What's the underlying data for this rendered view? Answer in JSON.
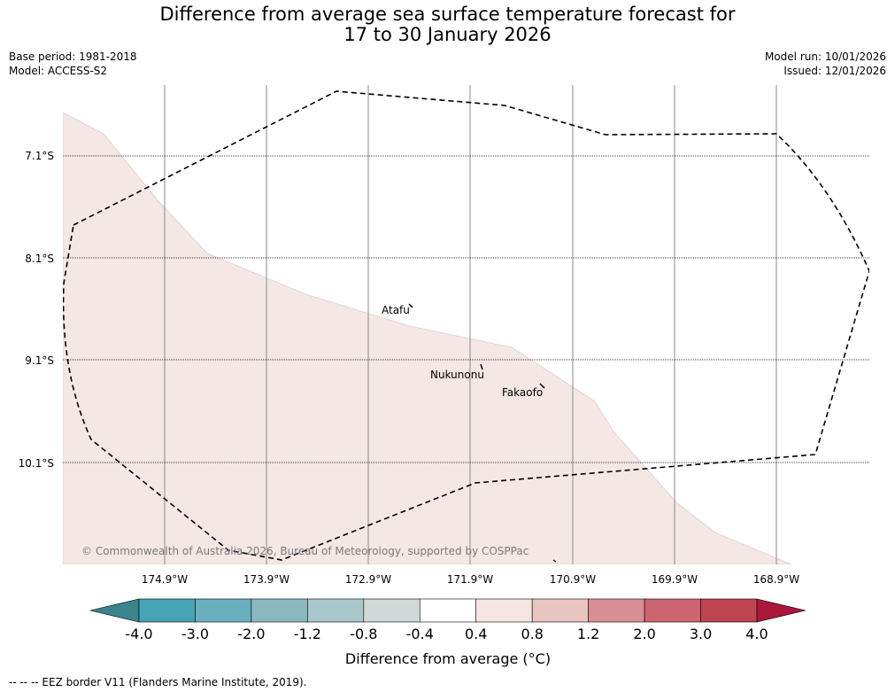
{
  "title": {
    "line1": "Difference from average sea surface temperature forecast for",
    "line2": "17 to 30 January 2026"
  },
  "meta": {
    "base_period": "Base period: 1981-2018",
    "model": "Model: ACCESS-S2",
    "model_run": "Model run: 10/01/2026",
    "issued": "Issued: 12/01/2026"
  },
  "map": {
    "latitudes": [
      "7.1°S",
      "8.1°S",
      "9.1°S",
      "10.1°S"
    ],
    "longitudes": [
      "174.9°W",
      "173.9°W",
      "172.9°W",
      "171.9°W",
      "170.9°W",
      "169.9°W",
      "168.9°W"
    ],
    "places": [
      {
        "name": "Atafu"
      },
      {
        "name": "Nukunonu"
      },
      {
        "name": "Fakaofo"
      }
    ],
    "copyright": "© Commonwealth of Australia 2026, Bureau of Meteorology, supported by COSPPac",
    "anomaly_fill_color": "#f4e7e6",
    "anomaly_fill_category": "0.4 to 0.8"
  },
  "colorbar": {
    "title": "Difference from average (°C)",
    "tick_labels": [
      "-4.0",
      "-3.0",
      "-2.0",
      "-1.2",
      "-0.8",
      "-0.4",
      "0.4",
      "0.8",
      "1.2",
      "2.0",
      "3.0",
      "4.0"
    ],
    "colors": [
      "#3b838d",
      "#46a4b4",
      "#6aafbd",
      "#8cb8c1",
      "#a9c8cb",
      "#d1d9d8",
      "#ffffff",
      "#f5e6e5",
      "#e9c5c2",
      "#d98e93",
      "#cc6570",
      "#bf4552",
      "#a9183a"
    ]
  },
  "footer": "--  --  -- EEZ border V11 (Flanders Marine Institute, 2019)."
}
